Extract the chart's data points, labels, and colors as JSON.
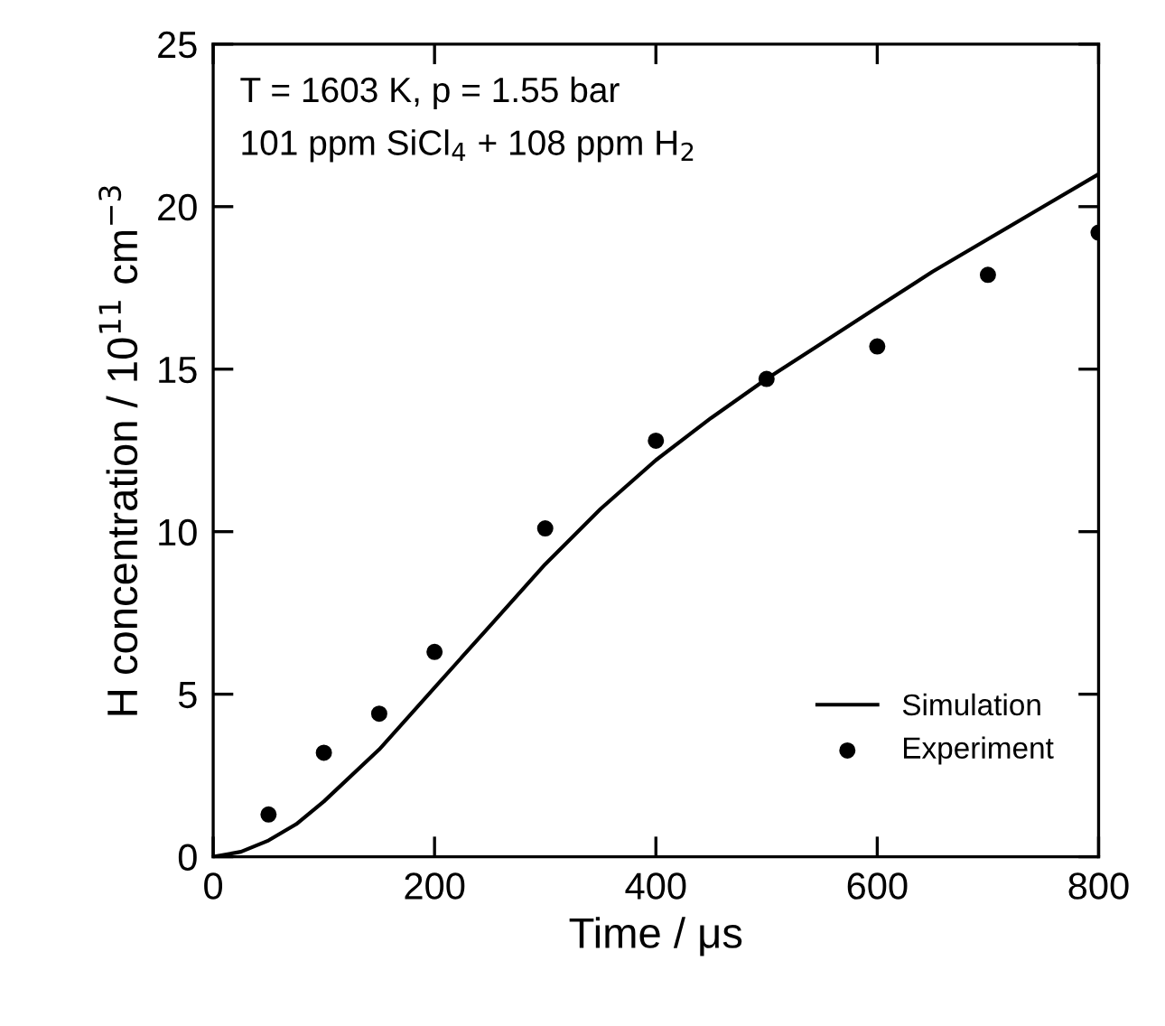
{
  "chart_data": {
    "type": "line",
    "xlabel": "Time / μs",
    "ylabel": "H concentration / 10$^{11}$ cm$^{−3}$",
    "annotations": [
      "T = 1603 K, p = 1.55 bar",
      "101 ppm SiCl$_{4}$ + 108 ppm H$_{2}$"
    ],
    "series": [
      {
        "name": "Simulation",
        "color": "#000000",
        "marker": "none",
        "x": [
          0,
          25,
          50,
          75,
          100,
          150,
          200,
          250,
          300,
          350,
          400,
          450,
          500,
          550,
          600,
          650,
          700,
          750,
          800
        ],
        "values": [
          0,
          0.15,
          0.5,
          1.0,
          1.7,
          3.3,
          5.2,
          7.1,
          9.0,
          10.7,
          12.2,
          13.5,
          14.7,
          15.8,
          16.9,
          18.0,
          19.0,
          20.0,
          21.0
        ]
      },
      {
        "name": "Experiment",
        "type": "scatter",
        "color": "#000000",
        "marker": "circle",
        "x": [
          50,
          100,
          150,
          200,
          300,
          400,
          500,
          600,
          700,
          800
        ],
        "values": [
          1.3,
          3.2,
          4.4,
          6.3,
          10.1,
          12.8,
          14.7,
          15.7,
          17.9,
          19.2
        ]
      }
    ],
    "xlim": [
      0,
      800
    ],
    "xticks": [
      0,
      200,
      400,
      600,
      800
    ],
    "ylim": [
      0,
      25
    ],
    "yticks": [
      0,
      5,
      10,
      15,
      20,
      25
    ],
    "grid": false,
    "legend": "bottom right"
  }
}
